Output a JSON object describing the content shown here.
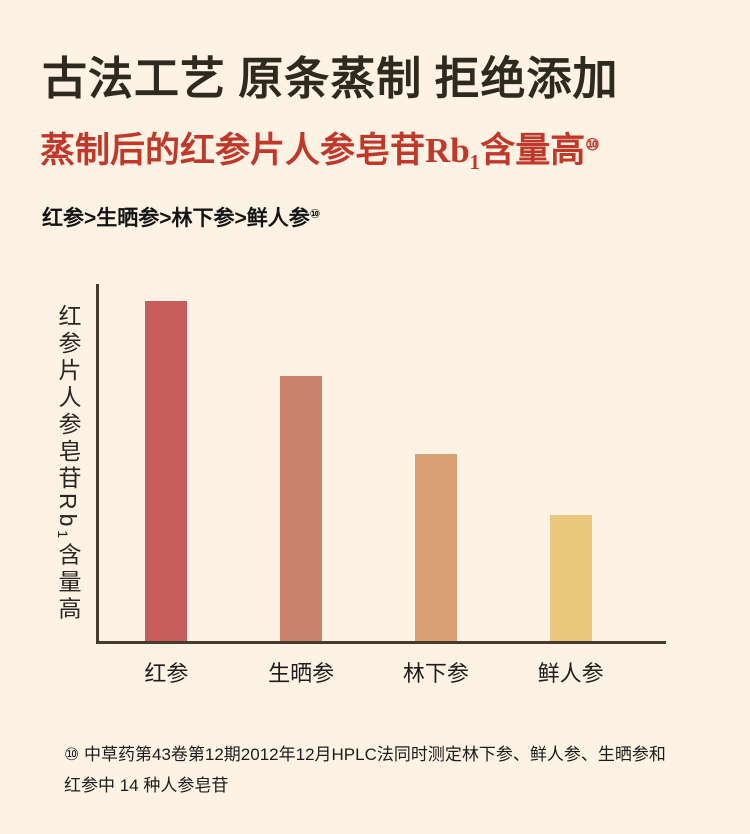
{
  "page": {
    "background": "#fdf2e3"
  },
  "header": {
    "title": "古法工艺 原条蒸制 拒绝添加",
    "subtitle": "蒸制后的红参片人参皂苷Rb₁含量高",
    "subtitle_superscript": "⑩",
    "ranking": "红参>生晒参>林下参>鲜人参",
    "ranking_superscript": "⑩"
  },
  "chart_data": {
    "type": "bar",
    "categories": [
      "红参",
      "生晒参",
      "林下参",
      "鲜人参"
    ],
    "values": [
      100,
      78,
      55,
      37
    ],
    "colors": [
      "#c65d5b",
      "#c9836c",
      "#d7a173",
      "#e9c77d"
    ],
    "title": "",
    "xlabel": "",
    "ylabel": "红参片人参皂苷Rb₁含量高",
    "ylim": [
      0,
      105
    ],
    "grid": false,
    "legend": "none",
    "axis_color": "#463b2e",
    "note": "相对含量，无数值刻度"
  },
  "footnote": {
    "marker": "⑩",
    "text": "中草药第43卷第12期2012年12月HPLC法同时测定林下参、鲜人参、生晒参和红参中 14 种人参皂苷"
  }
}
